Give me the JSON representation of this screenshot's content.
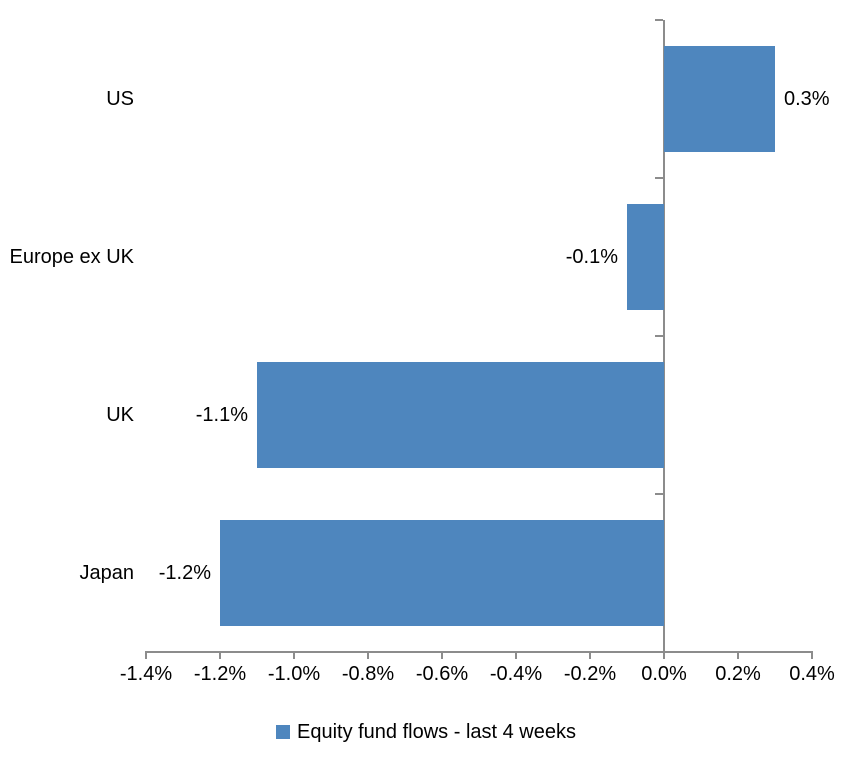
{
  "chart_data": {
    "type": "bar",
    "orientation": "horizontal",
    "categories": [
      "US",
      "Europe ex UK",
      "UK",
      "Japan"
    ],
    "values": [
      0.3,
      -0.1,
      -1.1,
      -1.2
    ],
    "data_labels": [
      "0.3%",
      "-0.1%",
      "-1.1%",
      "-1.2%"
    ],
    "series_name": "Equity fund flows - last 4 weeks",
    "title": "",
    "xlabel": "",
    "ylabel": "",
    "xlim": [
      -1.4,
      0.4
    ],
    "x_tick_values": [
      -1.4,
      -1.2,
      -1.0,
      -0.8,
      -0.6,
      -0.4,
      -0.2,
      0.0,
      0.2,
      0.4
    ],
    "x_tick_labels": [
      "-1.4%",
      "-1.2%",
      "-1.0%",
      "-0.8%",
      "-0.6%",
      "-0.4%",
      "-0.2%",
      "0.0%",
      "0.2%",
      "0.4%"
    ],
    "grid": false,
    "legend_position": "bottom",
    "bar_color": "#4E86BE",
    "axis_color": "#8C8C8C",
    "text_color": "#000000"
  }
}
